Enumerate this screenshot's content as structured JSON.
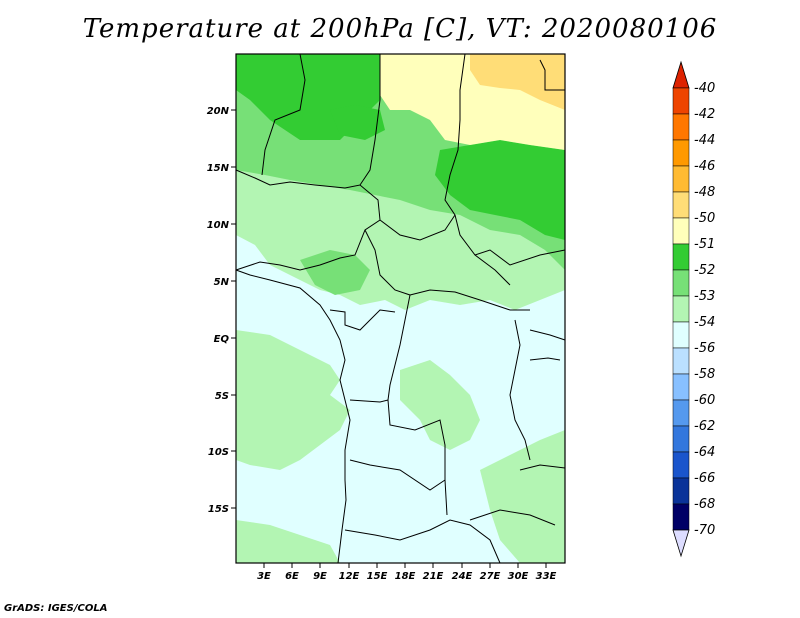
{
  "title": "Temperature at 200hPa [C], VT: 2020080106",
  "credit": "GrADS: IGES/COLA",
  "map": {
    "lat_labels": [
      "20N",
      "15N",
      "10N",
      "5N",
      "EQ",
      "5S",
      "10S",
      "15S"
    ],
    "lon_labels": [
      "3E",
      "6E",
      "9E",
      "12E",
      "15E",
      "18E",
      "21E",
      "24E",
      "27E",
      "30E",
      "33E"
    ]
  },
  "legend": {
    "labels": [
      "-40",
      "-42",
      "-44",
      "-46",
      "-48",
      "-50",
      "-51",
      "-52",
      "-53",
      "-54",
      "-56",
      "-58",
      "-60",
      "-62",
      "-64",
      "-66",
      "-68",
      "-70"
    ],
    "colors": [
      "#dd2200",
      "#ee4400",
      "#ff7700",
      "#ff9900",
      "#ffbb33",
      "#ffdd77",
      "#ffffbb",
      "#33cc33",
      "#77e077",
      "#b3f5b3",
      "#e0ffff",
      "#bbe0ff",
      "#88c0ff",
      "#5599ee",
      "#3377dd",
      "#1a55cc",
      "#0a3399",
      "#000066"
    ]
  }
}
